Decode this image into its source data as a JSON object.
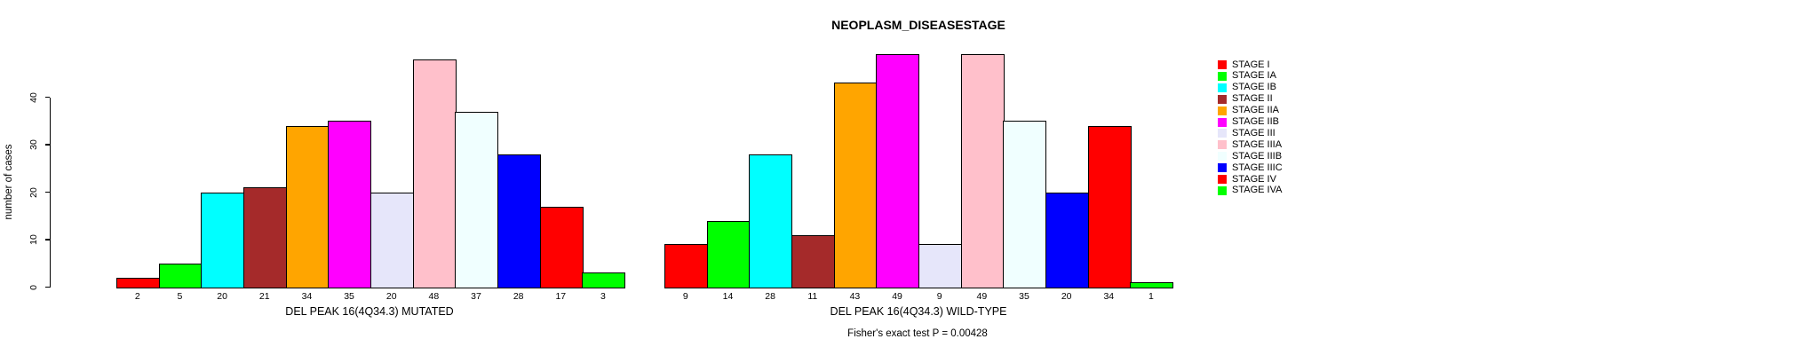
{
  "chart_data": {
    "type": "bar",
    "title": "NEOPLASM_DISEASESTAGE",
    "ylabel": "number of cases",
    "ylim": [
      0,
      49
    ],
    "yticks": [
      0,
      10,
      20,
      30,
      40
    ],
    "grid": false,
    "legend_position": "right",
    "categories": [
      "STAGE I",
      "STAGE IA",
      "STAGE IB",
      "STAGE II",
      "STAGE IIA",
      "STAGE IIB",
      "STAGE III",
      "STAGE IIIA",
      "STAGE IIIB",
      "STAGE IIIC",
      "STAGE IV",
      "STAGE IVA"
    ],
    "colors": [
      "#FF0000",
      "#00FF00",
      "#00FFFF",
      "#A52A2A",
      "#FFA500",
      "#FF00FF",
      "#E6E6FA",
      "#FFC0CB",
      "#F0FFFF",
      "#0000FF",
      "#FF0000",
      "#00FF00"
    ],
    "panels": [
      {
        "xlabel": "DEL PEAK 16(4Q34.3) MUTATED",
        "values": [
          2,
          5,
          20,
          21,
          34,
          35,
          20,
          48,
          37,
          28,
          17,
          3
        ],
        "bar_labels": [
          "2",
          "5",
          "20",
          "21",
          "34",
          "35",
          "20",
          "48",
          "37",
          "28",
          "17",
          "3"
        ]
      },
      {
        "xlabel": "DEL PEAK 16(4Q34.3) WILD-TYPE",
        "values": [
          9,
          14,
          28,
          11,
          43,
          49,
          9,
          49,
          35,
          20,
          34,
          1
        ],
        "bar_labels": [
          "9",
          "14",
          "28",
          "11",
          "43",
          "49",
          "9",
          "49",
          "35",
          "20",
          "34",
          "1"
        ]
      }
    ],
    "annotation": "Fisher's exact test P = 0.00428",
    "legend": [
      {
        "label": "STAGE I",
        "color": "#FF0000"
      },
      {
        "label": "STAGE IA",
        "color": "#00FF00"
      },
      {
        "label": "STAGE IB",
        "color": "#00FFFF"
      },
      {
        "label": "STAGE II",
        "color": "#A52A2A"
      },
      {
        "label": "STAGE IIA",
        "color": "#FFA500"
      },
      {
        "label": "STAGE IIB",
        "color": "#FF00FF"
      },
      {
        "label": "STAGE III",
        "color": "#E6E6FA"
      },
      {
        "label": "STAGE IIIA",
        "color": "#FFC0CB"
      },
      {
        "label": "STAGE IIIB",
        "color": "#F0FFFF"
      },
      {
        "label": "STAGE IIIC",
        "color": "#0000FF"
      },
      {
        "label": "STAGE IV",
        "color": "#FF0000"
      },
      {
        "label": "STAGE IVA",
        "color": "#00FF00"
      }
    ]
  }
}
